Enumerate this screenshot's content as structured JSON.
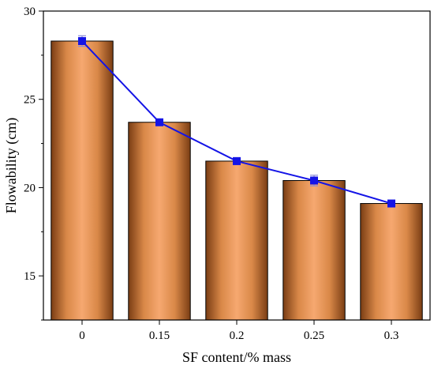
{
  "chart_data": {
    "type": "bar",
    "categories": [
      "0",
      "0.15",
      "0.2",
      "0.25",
      "0.3"
    ],
    "values": [
      28.3,
      23.7,
      21.5,
      20.4,
      19.1
    ],
    "errors": [
      0.3,
      0.1,
      0.2,
      0.3,
      0.1
    ],
    "xlabel": "SF content/% mass",
    "ylabel": "Flowability (cm)",
    "ylim": [
      12.5,
      30
    ],
    "yticks": [
      "15",
      "20",
      "25",
      "30"
    ],
    "line_overlay": true,
    "colors": {
      "bar_dark": "#8a4a1c",
      "bar_light": "#f6a870",
      "line": "#1414e6",
      "marker": "#1414e6",
      "error": "#8a8ad8"
    },
    "grid": false,
    "legend": "none"
  }
}
